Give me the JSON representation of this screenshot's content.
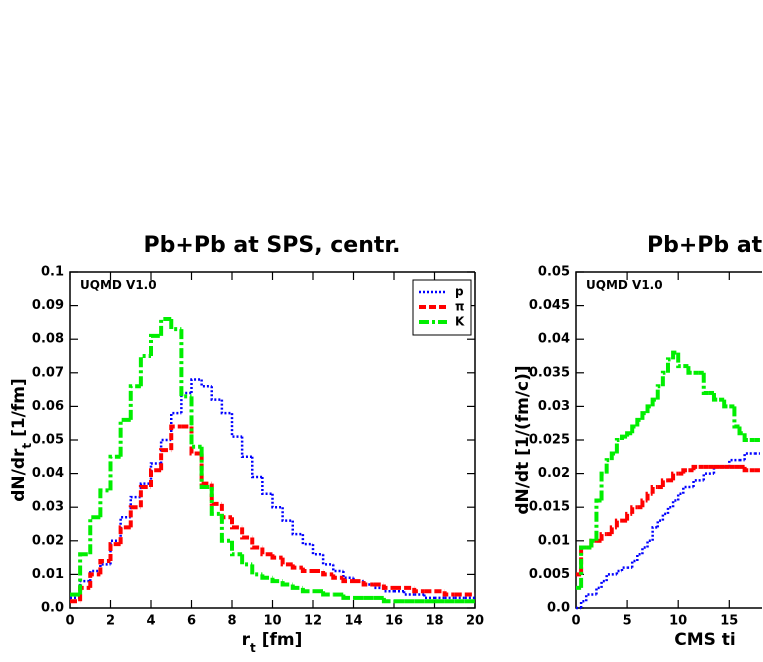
{
  "chart_data": [
    {
      "type": "histogram",
      "title": "Pb+Pb at SPS, centr.",
      "annotation": "UQMD V1.0",
      "xlabel": [
        "r",
        "t",
        " [fm]"
      ],
      "ylabel": [
        "dN/dr",
        "t",
        " [1/fm]"
      ],
      "xlim": [
        0,
        20
      ],
      "xticks": [
        0,
        2,
        4,
        6,
        8,
        10,
        12,
        14,
        16,
        18,
        20
      ],
      "ylim": [
        0,
        0.1
      ],
      "yticks": [
        {
          "value": 0,
          "label": "0.0"
        },
        0.01,
        0.02,
        0.03,
        0.04,
        0.05,
        0.06,
        0.07,
        0.08,
        0.09,
        0.1
      ],
      "legend": "upper right",
      "bins": [
        0,
        0.5,
        1,
        1.5,
        2,
        2.5,
        3,
        3.5,
        4,
        4.5,
        5,
        5.5,
        6,
        6.5,
        7,
        7.5,
        8,
        8.5,
        9,
        9.5,
        10,
        10.5,
        11,
        11.5,
        12,
        12.5,
        13,
        13.5,
        14,
        14.5,
        15,
        15.5,
        16,
        16.5,
        17,
        17.5,
        18,
        18.5,
        19,
        19.5,
        20
      ],
      "series": [
        {
          "name": "p",
          "color": "#0000ff",
          "style": "dotted",
          "values": [
            0.003,
            0.008,
            0.011,
            0.013,
            0.02,
            0.027,
            0.033,
            0.037,
            0.043,
            0.05,
            0.058,
            0.064,
            0.068,
            0.066,
            0.062,
            0.058,
            0.051,
            0.045,
            0.039,
            0.034,
            0.03,
            0.026,
            0.022,
            0.019,
            0.016,
            0.013,
            0.011,
            0.009,
            0.008,
            0.007,
            0.006,
            0.005,
            0.005,
            0.004,
            0.004,
            0.003,
            0.003,
            0.003,
            0.003,
            0.003
          ]
        },
        {
          "name": "π",
          "color": "#ff0000",
          "style": "dashed",
          "values": [
            0.002,
            0.006,
            0.01,
            0.014,
            0.019,
            0.024,
            0.03,
            0.036,
            0.041,
            0.047,
            0.054,
            0.054,
            0.046,
            0.037,
            0.031,
            0.027,
            0.024,
            0.021,
            0.018,
            0.016,
            0.015,
            0.013,
            0.012,
            0.011,
            0.011,
            0.01,
            0.009,
            0.008,
            0.008,
            0.007,
            0.007,
            0.006,
            0.006,
            0.006,
            0.005,
            0.005,
            0.005,
            0.004,
            0.004,
            0.004
          ]
        },
        {
          "name": "K",
          "color": "#00ee00",
          "style": "dashdot",
          "values": [
            0.004,
            0.016,
            0.027,
            0.035,
            0.045,
            0.056,
            0.066,
            0.075,
            0.081,
            0.086,
            0.083,
            0.063,
            0.048,
            0.036,
            0.028,
            0.02,
            0.016,
            0.013,
            0.01,
            0.009,
            0.008,
            0.007,
            0.006,
            0.005,
            0.005,
            0.004,
            0.004,
            0.003,
            0.003,
            0.003,
            0.003,
            0.002,
            0.002,
            0.002,
            0.002,
            0.002,
            0.002,
            0.002,
            0.002,
            0.002
          ]
        }
      ]
    },
    {
      "type": "histogram",
      "title": "Pb+Pb at",
      "annotation": "UQMD V1.0",
      "xlabel": [
        "CMS ti"
      ],
      "ylabel": [
        "dN/dt [1/(fm/c)]"
      ],
      "xlim": [
        0,
        18.2
      ],
      "xticks": [
        0,
        5,
        10,
        15
      ],
      "ylim": [
        0,
        0.05
      ],
      "yticks": [
        {
          "value": 0,
          "label": "0.0"
        },
        0.005,
        0.01,
        0.015,
        0.02,
        0.025,
        0.03,
        0.035,
        0.04,
        0.045,
        0.05
      ],
      "bins": [
        0,
        0.5,
        1,
        1.5,
        2,
        2.5,
        3,
        3.5,
        4,
        4.5,
        5,
        5.5,
        6,
        6.5,
        7,
        7.5,
        8,
        8.5,
        9,
        9.5,
        10,
        10.5,
        11,
        11.5,
        12,
        12.5,
        13,
        13.5,
        14,
        14.5,
        15,
        15.5,
        16,
        16.5,
        17,
        17.5,
        18
      ],
      "series": [
        {
          "name": "p",
          "color": "#0000ff",
          "style": "dotted",
          "values": [
            0.0,
            0.001,
            0.002,
            0.002,
            0.003,
            0.004,
            0.005,
            0.005,
            0.0055,
            0.006,
            0.006,
            0.007,
            0.008,
            0.009,
            0.01,
            0.012,
            0.013,
            0.014,
            0.015,
            0.016,
            0.017,
            0.018,
            0.018,
            0.019,
            0.019,
            0.02,
            0.02,
            0.021,
            0.021,
            0.021,
            0.022,
            0.022,
            0.022,
            0.023,
            0.023,
            0.023
          ]
        },
        {
          "name": "π",
          "color": "#ff0000",
          "style": "dashed",
          "values": [
            0.005,
            0.009,
            0.009,
            0.01,
            0.01,
            0.011,
            0.011,
            0.012,
            0.013,
            0.013,
            0.014,
            0.015,
            0.015,
            0.016,
            0.017,
            0.018,
            0.018,
            0.019,
            0.019,
            0.02,
            0.02,
            0.0205,
            0.0205,
            0.021,
            0.021,
            0.021,
            0.021,
            0.021,
            0.021,
            0.021,
            0.021,
            0.021,
            0.021,
            0.0205,
            0.0205,
            0.0205
          ]
        },
        {
          "name": "K",
          "color": "#00ee00",
          "style": "dashdot",
          "values": [
            0.003,
            0.009,
            0.009,
            0.01,
            0.016,
            0.02,
            0.022,
            0.023,
            0.025,
            0.0255,
            0.026,
            0.027,
            0.028,
            0.029,
            0.03,
            0.031,
            0.033,
            0.035,
            0.037,
            0.038,
            0.036,
            0.036,
            0.035,
            0.035,
            0.035,
            0.032,
            0.032,
            0.031,
            0.031,
            0.03,
            0.03,
            0.027,
            0.026,
            0.025,
            0.025,
            0.025
          ]
        }
      ]
    }
  ]
}
